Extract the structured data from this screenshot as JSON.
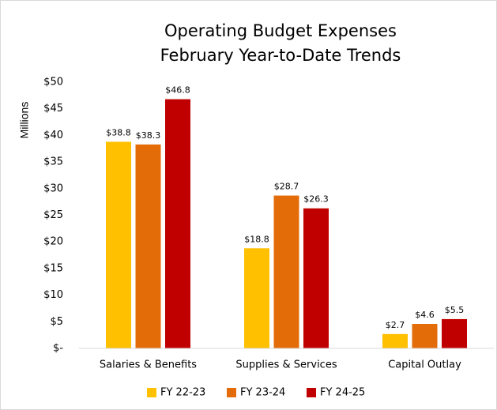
{
  "chart_data": {
    "type": "bar",
    "title": "Operating Budget Expenses",
    "subtitle": "February Year-to-Date Trends",
    "ylabel": "Millions",
    "categories": [
      "Salaries & Benefits",
      "Supplies & Services",
      "Capital Outlay"
    ],
    "series": [
      {
        "name": "FY 22-23",
        "color": "#FFC000",
        "values": [
          38.8,
          18.8,
          2.7
        ],
        "value_labels": [
          "$38.8",
          "$18.8",
          "$2.7"
        ]
      },
      {
        "name": "FY 23-24",
        "color": "#E36C09",
        "values": [
          38.3,
          28.7,
          4.6
        ],
        "value_labels": [
          "$38.3",
          "$28.7",
          "$4.6"
        ]
      },
      {
        "name": "FY 24-25",
        "color": "#C00000",
        "values": [
          46.8,
          26.3,
          5.5
        ],
        "value_labels": [
          "$46.8",
          "$26.3",
          "$5.5"
        ]
      }
    ],
    "ylim": [
      0,
      50
    ],
    "yticks": [
      {
        "value": 0,
        "label": "$-"
      },
      {
        "value": 5,
        "label": "$5"
      },
      {
        "value": 10,
        "label": "$10"
      },
      {
        "value": 15,
        "label": "$15"
      },
      {
        "value": 20,
        "label": "$20"
      },
      {
        "value": 25,
        "label": "$25"
      },
      {
        "value": 30,
        "label": "$30"
      },
      {
        "value": 35,
        "label": "$35"
      },
      {
        "value": 40,
        "label": "$40"
      },
      {
        "value": 45,
        "label": "$45"
      },
      {
        "value": 50,
        "label": "$50"
      }
    ],
    "grid": false,
    "legend": "bottom"
  }
}
